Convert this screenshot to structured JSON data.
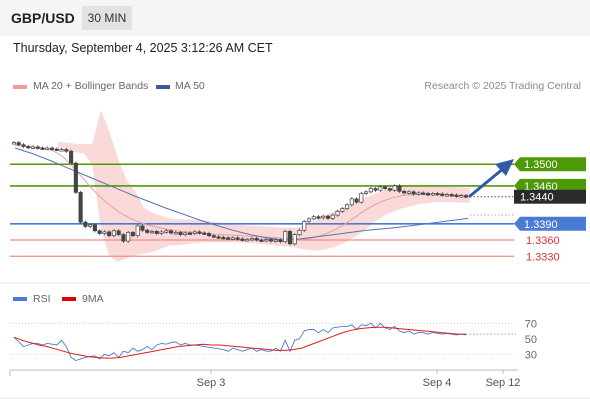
{
  "header": {
    "symbol": "GBP/USD",
    "timeframe": "30 MIN"
  },
  "datetime": "Thursday, September 4, 2025 3:12:26 AM CET",
  "legend": {
    "ma_bb": "MA 20 + Bollinger Bands",
    "ma50": "MA 50",
    "rsi": "RSI",
    "rsi_ma": "9MA"
  },
  "copyright": "Research © 2025 Trading Central",
  "colors": {
    "resistance": "#4e9a06",
    "pivot": "#4a7bd4",
    "support": "#f08c8c",
    "bands": "#f9d2d2",
    "ma20": "#e8a0a0",
    "ma50": "#5a73b0",
    "candle": "#444444",
    "price_tag": "#2b2b2b",
    "arrow": "#2e5aa8"
  },
  "chart_data": [
    {
      "type": "candlestick",
      "y_range": [
        1.3312,
        1.353
      ],
      "x_ticks": [
        "Sep 3",
        "Sep 4",
        "Sep 12"
      ],
      "levels": [
        {
          "label": "1.3500",
          "value": 1.35,
          "kind": "resistance"
        },
        {
          "label": "1.3460",
          "value": 1.346,
          "kind": "resistance"
        },
        {
          "label": "1.3390",
          "value": 1.339,
          "kind": "pivot"
        },
        {
          "label": "1.3360",
          "value": 1.336,
          "kind": "support"
        },
        {
          "label": "1.3330",
          "value": 1.333,
          "kind": "support"
        }
      ],
      "last_price": {
        "label": "1.3440",
        "value": 1.344
      },
      "closes": [
        1.354,
        1.3536,
        1.3533,
        1.3531,
        1.3532,
        1.353,
        1.3529,
        1.353,
        1.3528,
        1.3527,
        1.3527,
        1.3524,
        1.3502,
        1.3448,
        1.3393,
        1.3385,
        1.3388,
        1.3377,
        1.3372,
        1.3375,
        1.3368,
        1.3377,
        1.337,
        1.3358,
        1.3374,
        1.3368,
        1.3386,
        1.3378,
        1.3374,
        1.3376,
        1.3372,
        1.3375,
        1.3377,
        1.3373,
        1.3374,
        1.337,
        1.3373,
        1.3372,
        1.3375,
        1.3373,
        1.3372,
        1.3368,
        1.3366,
        1.3365,
        1.3364,
        1.3363,
        1.3364,
        1.3362,
        1.336,
        1.3361,
        1.3363,
        1.336,
        1.3359,
        1.3361,
        1.3358,
        1.336,
        1.3357,
        1.3376,
        1.3353,
        1.337,
        1.3378,
        1.3394,
        1.3399,
        1.3403,
        1.3401,
        1.3404,
        1.34,
        1.3406,
        1.3413,
        1.3418,
        1.3425,
        1.3436,
        1.343,
        1.3446,
        1.3449,
        1.3455,
        1.3452,
        1.3458,
        1.3455,
        1.3452,
        1.346,
        1.345,
        1.3447,
        1.3449,
        1.3445,
        1.3447,
        1.3446,
        1.3444,
        1.3446,
        1.3445,
        1.3443,
        1.3444,
        1.3443,
        1.3441,
        1.3442,
        1.344
      ],
      "ma20": [
        1.3535,
        1.3533,
        1.3531,
        1.353,
        1.3525,
        1.3515,
        1.3498,
        1.3478,
        1.3458,
        1.344,
        1.3425,
        1.3412,
        1.3402,
        1.3394,
        1.3388,
        1.3384,
        1.338,
        1.3377,
        1.3375,
        1.3374,
        1.3372,
        1.3371,
        1.337,
        1.3369,
        1.3368,
        1.3367,
        1.3366,
        1.3365,
        1.3364,
        1.3362,
        1.3361,
        1.3362,
        1.3366,
        1.3372,
        1.338,
        1.339,
        1.3402,
        1.3414,
        1.3424,
        1.3432,
        1.3438,
        1.3442,
        1.3444,
        1.3445,
        1.3445,
        1.3445,
        1.3444,
        1.3443,
        1.3443
      ],
      "bb_upper": [
        1.3542,
        1.354,
        1.3538,
        1.3537,
        1.3538,
        1.36,
        1.356,
        1.351,
        1.347,
        1.345,
        1.342,
        1.341,
        1.3405,
        1.34,
        1.3398,
        1.3398,
        1.3397,
        1.3396,
        1.3394,
        1.3392,
        1.339,
        1.3388,
        1.3387,
        1.3386,
        1.3385,
        1.3384,
        1.3383,
        1.3383,
        1.3383,
        1.339,
        1.3395,
        1.3405,
        1.3412,
        1.3418,
        1.3424,
        1.3432,
        1.344,
        1.3446,
        1.3452,
        1.3456,
        1.346,
        1.3462,
        1.3462,
        1.3462,
        1.3461,
        1.346,
        1.3458,
        1.3457,
        1.3456
      ],
      "bb_lower": [
        1.353,
        1.3525,
        1.3522,
        1.352,
        1.35,
        1.338,
        1.333,
        1.332,
        1.3326,
        1.3332,
        1.3335,
        1.3338,
        1.3344,
        1.335,
        1.335,
        1.3352,
        1.3355,
        1.3356,
        1.3356,
        1.3356,
        1.3356,
        1.3356,
        1.3355,
        1.3354,
        1.3352,
        1.335,
        1.3349,
        1.3348,
        1.3345,
        1.3342,
        1.334,
        1.3342,
        1.3346,
        1.3352,
        1.336,
        1.337,
        1.3382,
        1.3395,
        1.3405,
        1.3412,
        1.3418,
        1.3422,
        1.3426,
        1.3428,
        1.343,
        1.343,
        1.343,
        1.3429,
        1.3429
      ],
      "ma50": [
        1.353,
        1.352,
        1.3508,
        1.3495,
        1.3482,
        1.3469,
        1.3456,
        1.3443,
        1.3431,
        1.3419,
        1.3408,
        1.3397,
        1.3387,
        1.3378,
        1.337,
        1.3364,
        1.336,
        1.3362,
        1.3366,
        1.337,
        1.3374,
        1.3378,
        1.3381,
        1.3384,
        1.3388,
        1.3392,
        1.3396,
        1.34
      ]
    },
    {
      "type": "line",
      "y_ticks": [
        "70",
        "50",
        "30"
      ],
      "y_range": [
        20,
        82
      ],
      "rsi": [
        52,
        46,
        40,
        42,
        44,
        44,
        42,
        44,
        43,
        42,
        48,
        40,
        26,
        22,
        24,
        26,
        27,
        28,
        24,
        30,
        28,
        32,
        26,
        34,
        32,
        38,
        34,
        36,
        40,
        36,
        42,
        44,
        43,
        45,
        46,
        42,
        44,
        42,
        42,
        41,
        40,
        39,
        38,
        37,
        36,
        34,
        38,
        36,
        34,
        36,
        38,
        34,
        36,
        34,
        34,
        38,
        34,
        48,
        34,
        48,
        50,
        60,
        62,
        62,
        58,
        62,
        58,
        64,
        65,
        66,
        66,
        68,
        62,
        68,
        67,
        70,
        64,
        70,
        64,
        62,
        66,
        60,
        58,
        60,
        56,
        58,
        58,
        56,
        58,
        57,
        56,
        57,
        56,
        55,
        56,
        55
      ],
      "rsi_ma": [
        52,
        48,
        45,
        42,
        40,
        37,
        34,
        31,
        29,
        27,
        26,
        25,
        25,
        26,
        28,
        30,
        32,
        34,
        36,
        38,
        40,
        41,
        42,
        43,
        42,
        42,
        41,
        40,
        39,
        38,
        37,
        36,
        35,
        35,
        36,
        38,
        42,
        46,
        50,
        54,
        58,
        61,
        63,
        64,
        65,
        65,
        64,
        63,
        62,
        61,
        60,
        59,
        58,
        57,
        56,
        56
      ]
    }
  ]
}
